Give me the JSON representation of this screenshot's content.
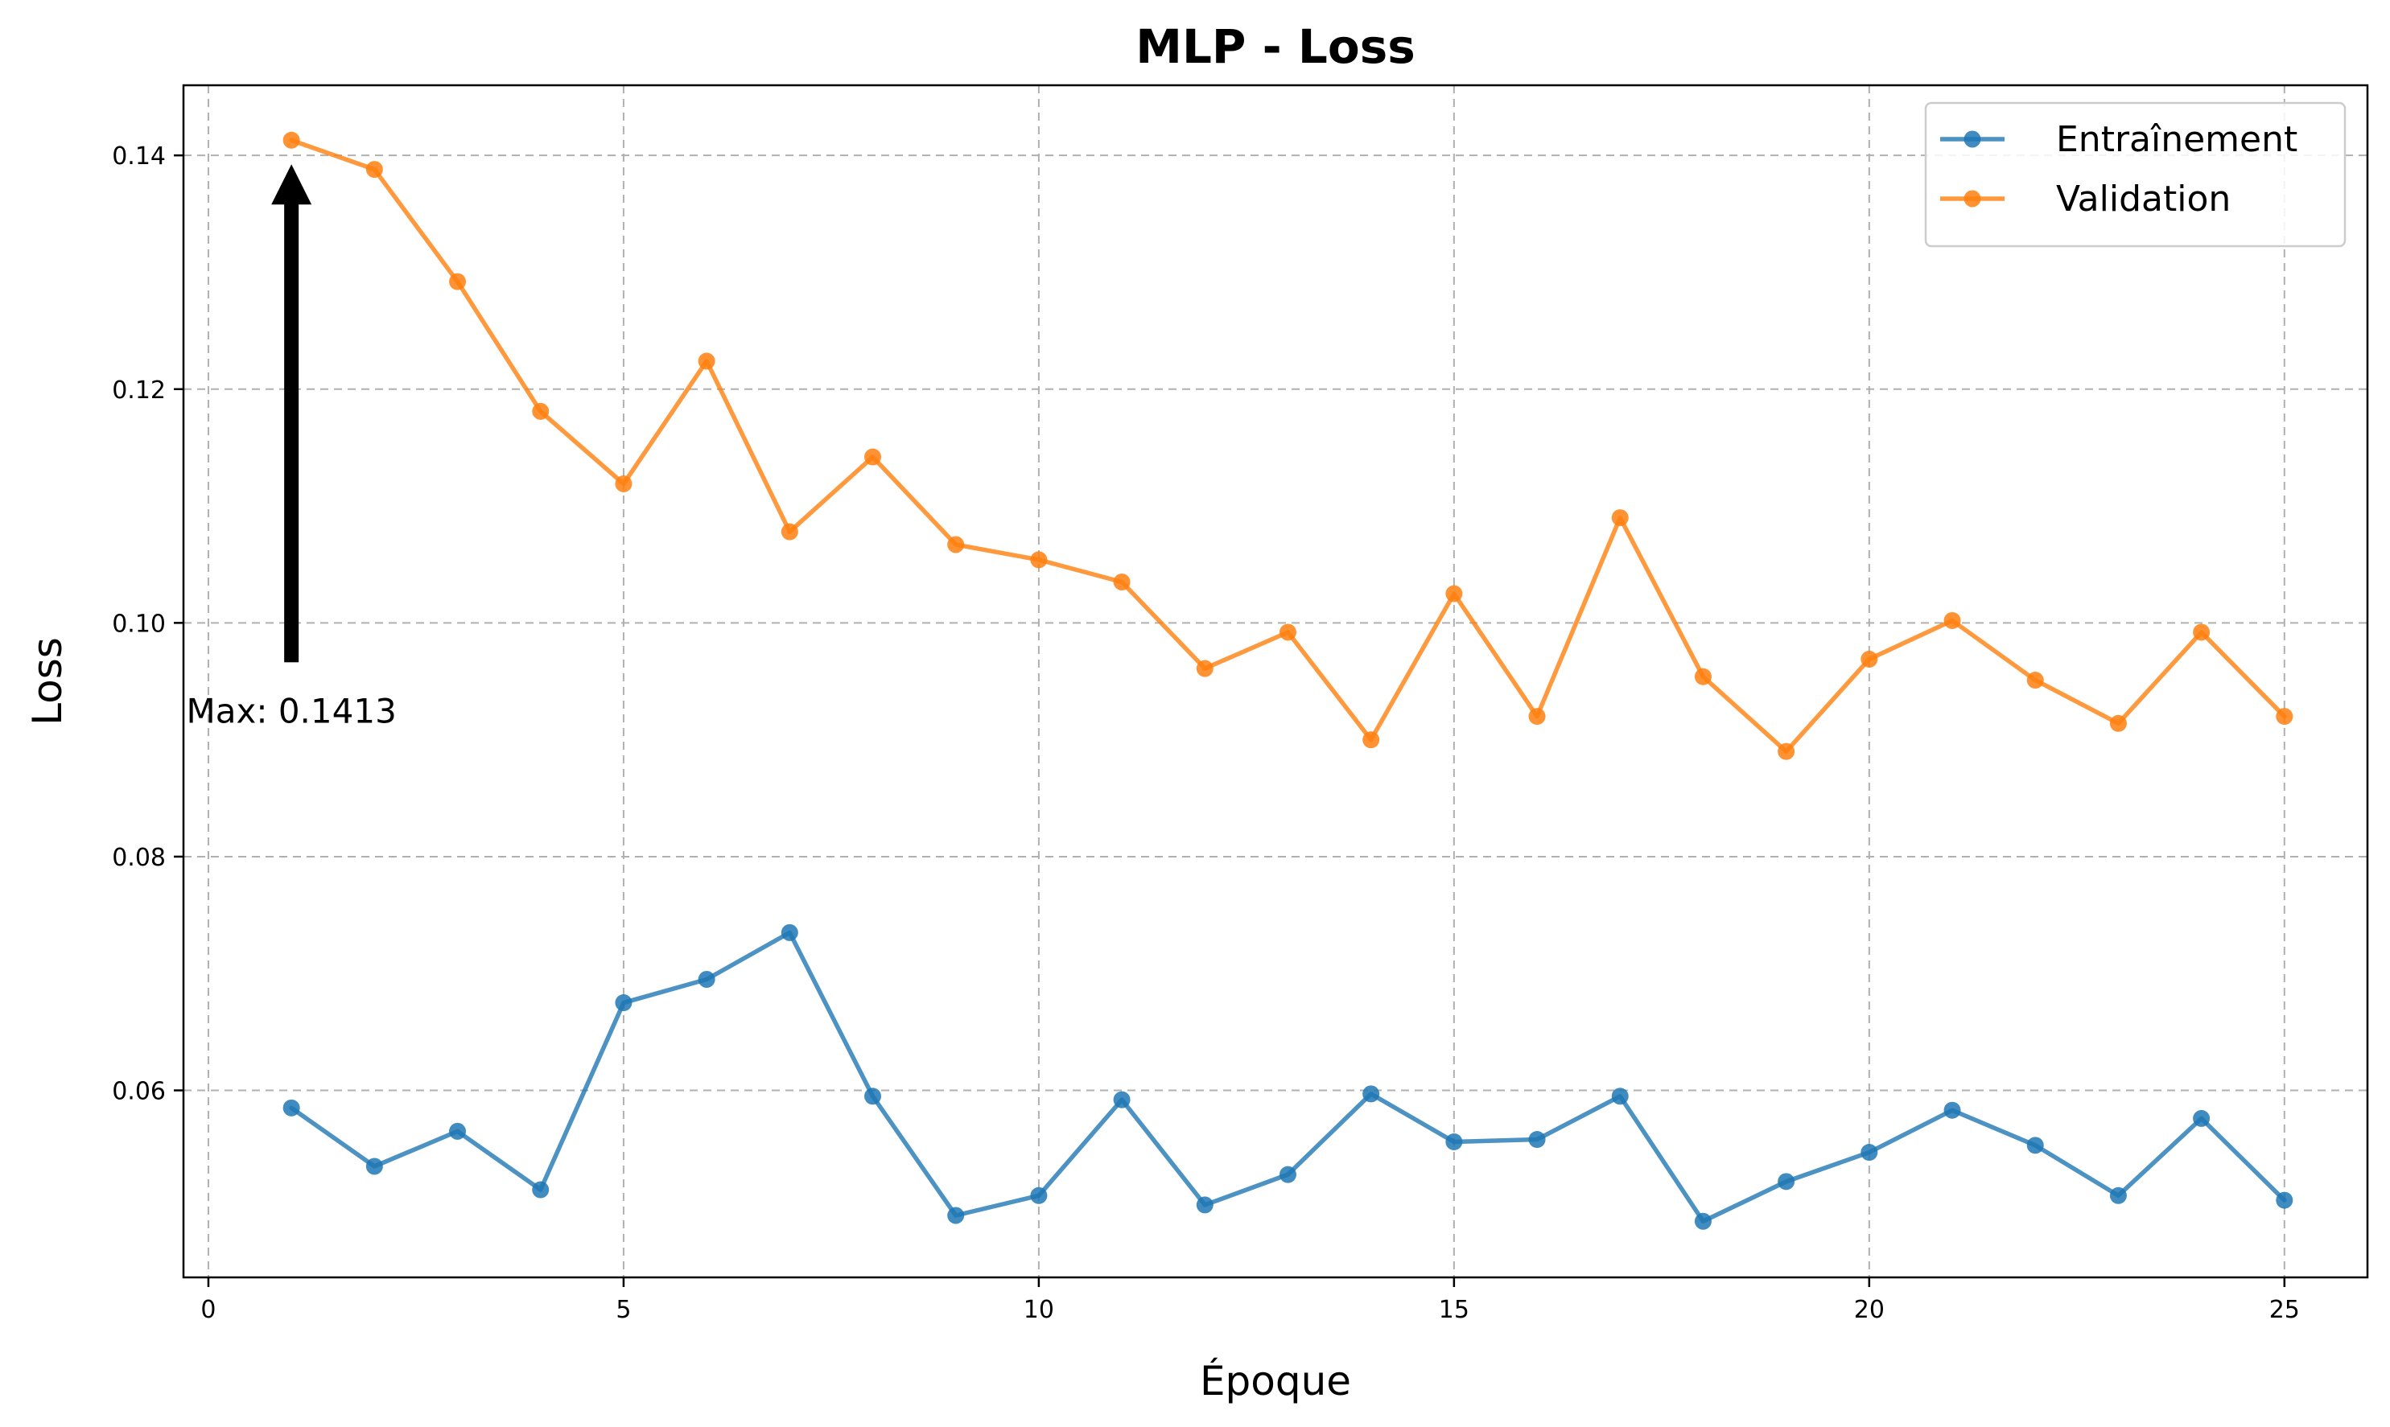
{
  "chart_data": {
    "type": "line",
    "title": "MLP - Loss",
    "xlabel": "Époque",
    "ylabel": "Loss",
    "xlim": [
      -0.3,
      26.0
    ],
    "ylim": [
      0.044,
      0.146
    ],
    "xticks": [
      0,
      5,
      10,
      15,
      20,
      25
    ],
    "yticks": [
      0.06,
      0.08,
      0.1,
      0.12,
      0.14
    ],
    "ytick_labels": [
      "0.06",
      "0.08",
      "0.10",
      "0.12",
      "0.14"
    ],
    "grid": true,
    "legend_position": "top-right",
    "x": [
      1,
      2,
      3,
      4,
      5,
      6,
      7,
      8,
      9,
      10,
      11,
      12,
      13,
      14,
      15,
      16,
      17,
      18,
      19,
      20,
      21,
      22,
      23,
      24,
      25
    ],
    "series": [
      {
        "name": "Entraînement",
        "color": "#1f77b4",
        "values": [
          0.0585,
          0.0535,
          0.0565,
          0.0515,
          0.0675,
          0.0695,
          0.0735,
          0.0595,
          0.0493,
          0.051,
          0.0592,
          0.0502,
          0.0528,
          0.0597,
          0.0556,
          0.0558,
          0.0595,
          0.0488,
          0.0522,
          0.0547,
          0.0583,
          0.0553,
          0.051,
          0.0576,
          0.0506
        ]
      },
      {
        "name": "Validation",
        "color": "#ff7f0e",
        "values": [
          0.1413,
          0.1388,
          0.1292,
          0.1181,
          0.1119,
          0.1224,
          0.1078,
          0.1142,
          0.1067,
          0.1054,
          0.1035,
          0.0961,
          0.0992,
          0.09,
          0.1025,
          0.092,
          0.109,
          0.0954,
          0.089,
          0.0969,
          0.1002,
          0.0951,
          0.0914,
          0.0992,
          0.092
        ]
      }
    ],
    "annotations": [
      {
        "text": "Max: 0.1413",
        "points_to": {
          "x": 1,
          "y": 0.1413
        },
        "text_at": {
          "x": 1,
          "y": 0.0925
        }
      }
    ]
  }
}
